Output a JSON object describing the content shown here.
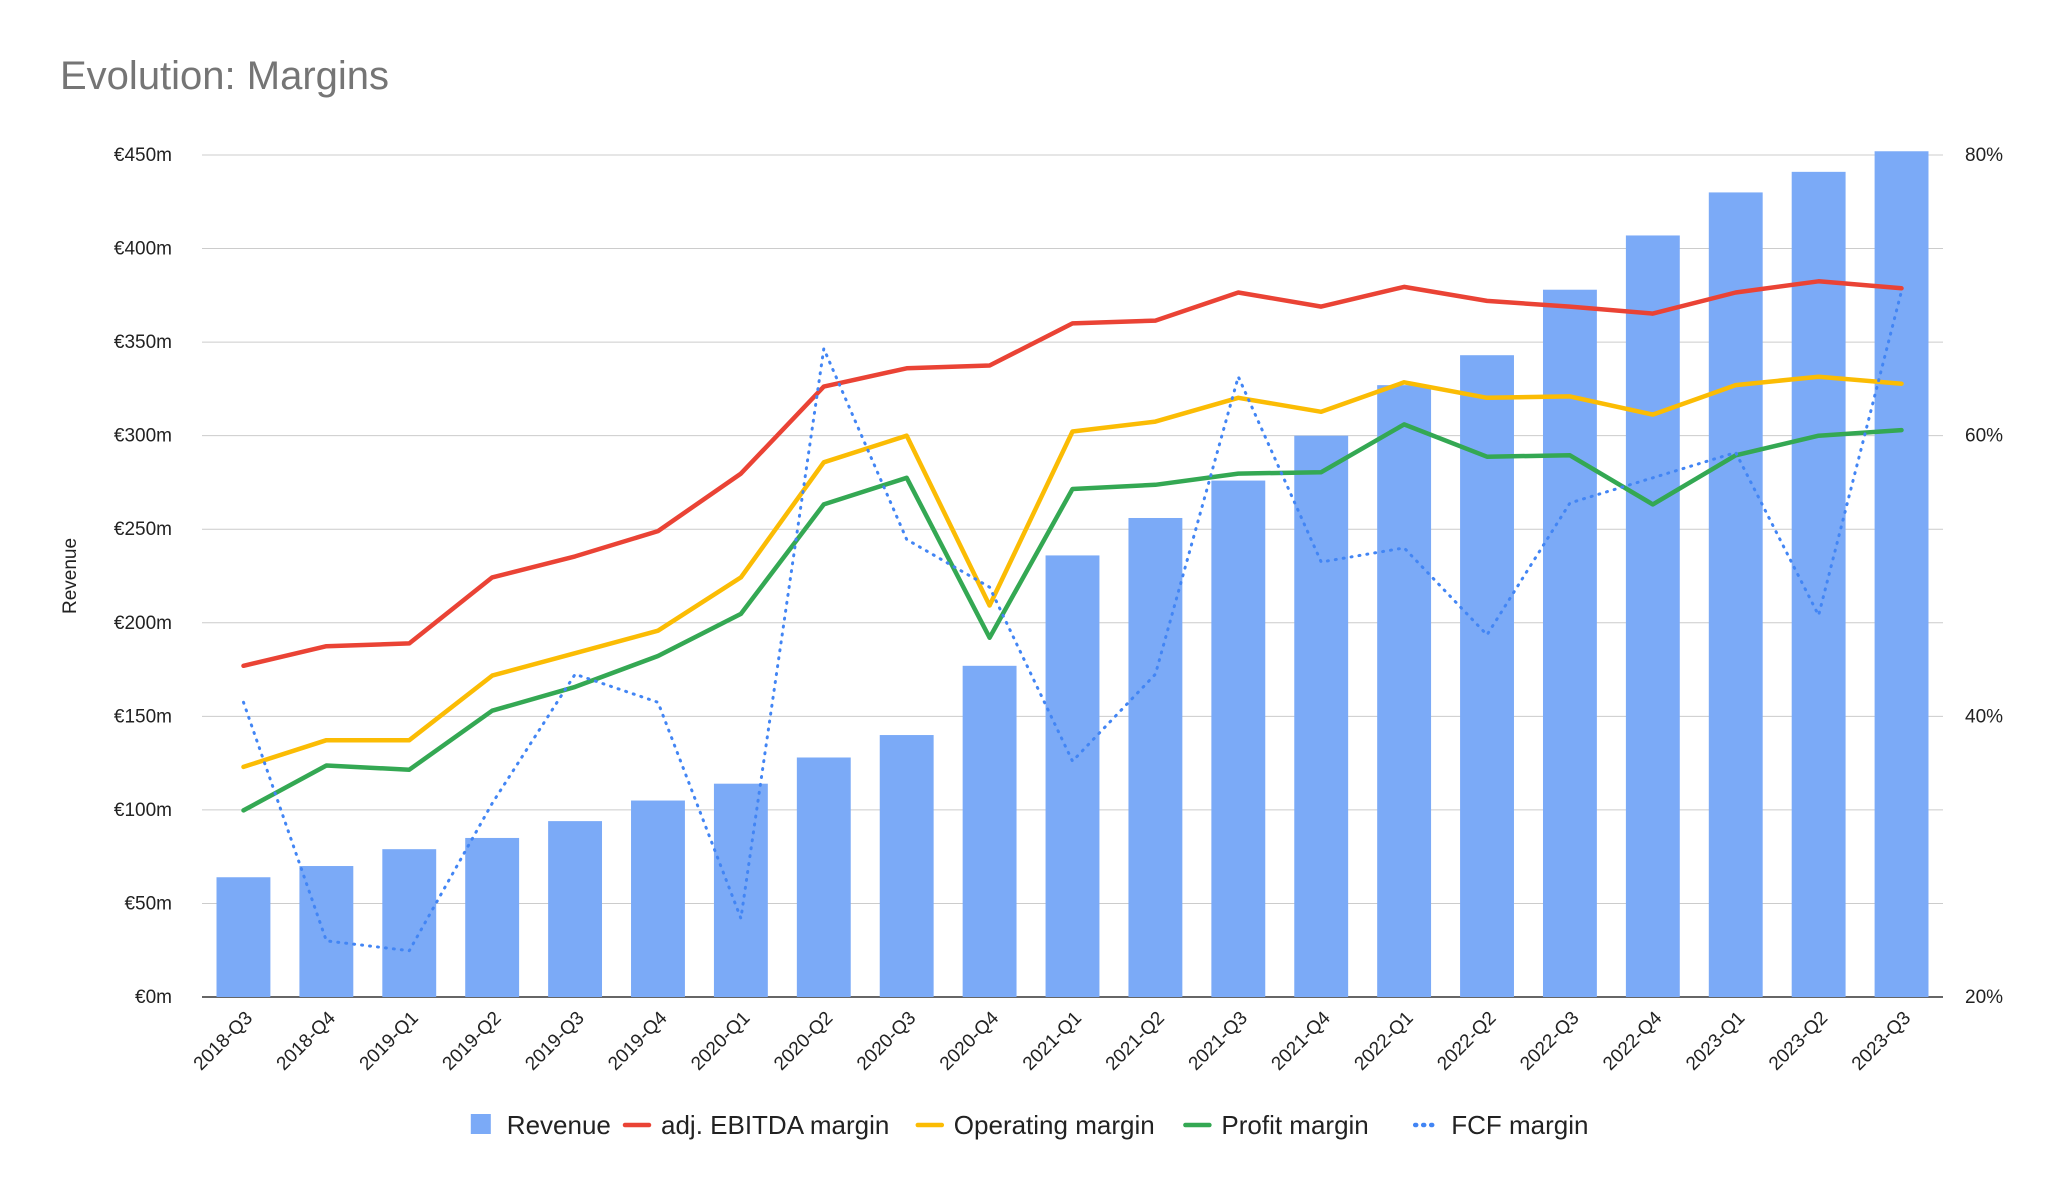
{
  "chart_data": {
    "type": "bar",
    "title": "Evolution: Margins",
    "ylabel": "Revenue",
    "y_left": {
      "ticks": [
        "€0m",
        "€50m",
        "€100m",
        "€150m",
        "€200m",
        "€250m",
        "€300m",
        "€350m",
        "€400m",
        "€450m"
      ],
      "range": [
        0,
        450
      ]
    },
    "y_right": {
      "ticks": [
        "20%",
        "40%",
        "60%",
        "80%"
      ],
      "range": [
        20,
        80
      ]
    },
    "categories": [
      "2018-Q3",
      "2018-Q4",
      "2019-Q1",
      "2019-Q2",
      "2019-Q3",
      "2019-Q4",
      "2020-Q1",
      "2020-Q2",
      "2020-Q3",
      "2020-Q4",
      "2021-Q1",
      "2021-Q2",
      "2021-Q3",
      "2021-Q4",
      "2022-Q1",
      "2022-Q2",
      "2022-Q3",
      "2022-Q4",
      "2023-Q1",
      "2023-Q2",
      "2023-Q3"
    ],
    "grid": true,
    "legend_position": "bottom",
    "series": [
      {
        "name": "Revenue",
        "type": "bar",
        "axis": "left",
        "color": "#7baaf7",
        "values": [
          64,
          70,
          79,
          85,
          94,
          105,
          114,
          128,
          140,
          177,
          236,
          256,
          276,
          300,
          327,
          343,
          378,
          407,
          430,
          441,
          452
        ]
      },
      {
        "name": "adj. EBITDA margin",
        "type": "line",
        "axis": "right",
        "color": "#ea4335",
        "style": "solid",
        "values": [
          43.6,
          45.0,
          45.2,
          49.9,
          51.4,
          53.2,
          57.3,
          63.5,
          64.8,
          65.0,
          68.0,
          68.2,
          70.2,
          69.2,
          70.6,
          69.6,
          69.2,
          68.7,
          70.2,
          71.0,
          70.5
        ]
      },
      {
        "name": "Operating margin",
        "type": "line",
        "axis": "right",
        "color": "#fbbc04",
        "style": "solid",
        "values": [
          36.4,
          38.3,
          38.3,
          42.9,
          44.5,
          46.1,
          49.9,
          58.1,
          60.0,
          47.9,
          60.3,
          61.0,
          62.7,
          61.7,
          63.8,
          62.7,
          62.8,
          61.5,
          63.6,
          64.2,
          63.7
        ]
      },
      {
        "name": "Profit margin",
        "type": "line",
        "axis": "right",
        "color": "#34a853",
        "style": "solid",
        "values": [
          33.3,
          36.5,
          36.2,
          40.4,
          42.1,
          44.3,
          47.3,
          55.1,
          57.0,
          45.6,
          56.2,
          56.5,
          57.3,
          57.4,
          60.8,
          58.5,
          58.6,
          55.1,
          58.6,
          60.0,
          60.4
        ]
      },
      {
        "name": "FCF margin",
        "type": "line",
        "axis": "right",
        "color": "#4285f4",
        "style": "dotted",
        "values": [
          41.0,
          24.0,
          23.3,
          33.8,
          43.0,
          41.0,
          25.6,
          66.2,
          52.6,
          49.2,
          36.8,
          43.0,
          64.2,
          51.0,
          52.0,
          45.8,
          55.2,
          57.0,
          58.8,
          47.2,
          70.3
        ]
      }
    ]
  }
}
